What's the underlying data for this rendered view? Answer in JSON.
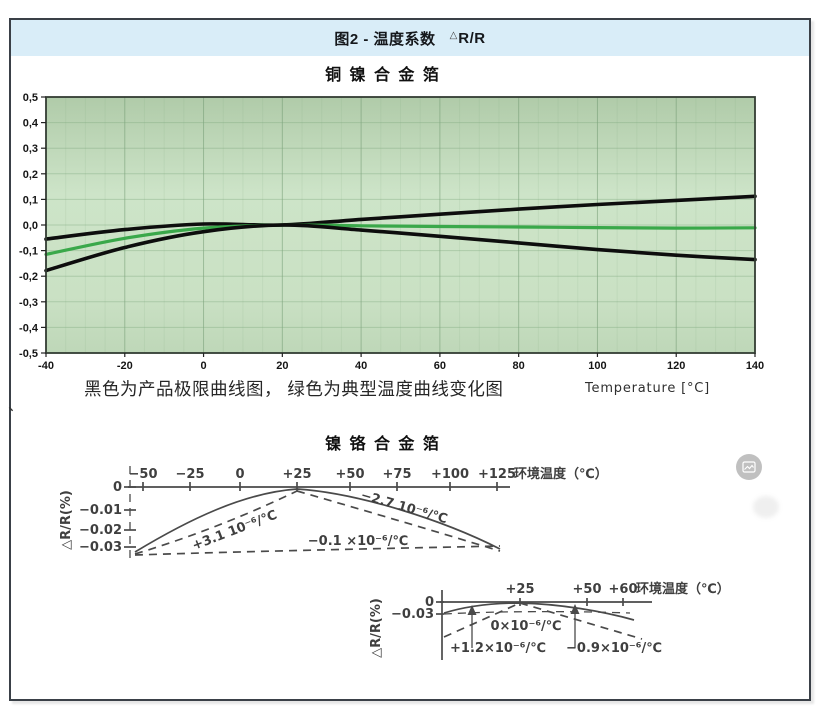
{
  "header": {
    "title": "图2 - 温度系数",
    "delta": "△",
    "ratio": "R/R"
  },
  "colors": {
    "header_bg": "#d9edf8",
    "accent_green": "#3aa84a",
    "curve_black": "#0d0d0d",
    "frame_border": "#3a4047",
    "plot_green_dark": "#b0cba9",
    "plot_green_light": "#cde4c8"
  },
  "copper": {
    "title": "铜 镍 合 金 箔",
    "caption": "黑色为产品极限曲线图， 绿色为典型温度曲线变化图",
    "xlabel": "Temperature [°C]"
  },
  "stray_mark": "、",
  "nicr": {
    "title": "镍 铬 合 金 箔",
    "upper": {
      "ylabel": "△R/R(%)",
      "x_axis_label": "环境温度（℃）",
      "x_ticks": [
        "−50",
        "−25",
        "0",
        "+25",
        "+50",
        "+75",
        "+100",
        "+125"
      ],
      "y_ticks": [
        "0",
        "−0.01",
        "−0.02",
        "−0.03"
      ],
      "label_left_slope": "+3.1  10⁻⁶/℃",
      "label_right_slope": "−2.7  10⁻⁶/℃",
      "label_bottom": "−0.1 ×10⁻⁶/℃"
    },
    "lower": {
      "ylabel": "△R/R(%)",
      "x_axis_label": "环境温度（℃）",
      "x_ticks": [
        "+25",
        "+50",
        "+60"
      ],
      "y_ticks": [
        "0",
        "−0.03"
      ],
      "label_mid": "0×10⁻⁶/℃",
      "label_left": "+1.2×10⁻⁶/℃",
      "label_right": "−0.9×10⁻⁶/℃"
    }
  },
  "chart_data": [
    {
      "type": "line",
      "name": "copper-nickel-foil-tcr",
      "title": "铜 镍 合 金 箔",
      "xlabel": "Temperature [°C]",
      "ylabel": "ΔR/R",
      "xlim": [
        -40,
        140
      ],
      "ylim": [
        -0.5,
        0.5
      ],
      "grid": true,
      "x_ticks": [
        -40,
        -20,
        0,
        20,
        40,
        60,
        80,
        100,
        120,
        140
      ],
      "x_tick_labels": [
        "-40",
        "-20",
        "0",
        "20",
        "40",
        "60",
        "80",
        "100",
        "120",
        "140"
      ],
      "y_ticks": [
        0.5,
        0.4,
        0.3,
        0.2,
        0.1,
        0.0,
        -0.1,
        -0.2,
        -0.3,
        -0.4,
        -0.5
      ],
      "y_tick_labels": [
        "0,5",
        "0,4",
        "0,3",
        "0,2",
        "0,1",
        "0,0",
        "-0,1",
        "-0,2",
        "-0,3",
        "-0,4",
        "-0,5"
      ],
      "series": [
        {
          "name": "upper-limit",
          "color": "#0d0d0d",
          "width": 3.6,
          "x": [
            -40,
            -20,
            0,
            20,
            40,
            60,
            80,
            100,
            120,
            140
          ],
          "y": [
            -0.055,
            -0.018,
            0.004,
            0.0,
            0.022,
            0.042,
            0.062,
            0.08,
            0.096,
            0.112
          ]
        },
        {
          "name": "typical",
          "color": "#3aa84a",
          "width": 3.2,
          "x": [
            -40,
            -20,
            0,
            20,
            40,
            60,
            80,
            100,
            120,
            140
          ],
          "y": [
            -0.115,
            -0.052,
            -0.012,
            0.0,
            -0.003,
            -0.006,
            -0.008,
            -0.01,
            -0.012,
            -0.011
          ]
        },
        {
          "name": "lower-limit",
          "color": "#0d0d0d",
          "width": 3.6,
          "x": [
            -40,
            -20,
            0,
            20,
            40,
            60,
            80,
            100,
            120,
            140
          ],
          "y": [
            -0.178,
            -0.088,
            -0.026,
            0.0,
            -0.02,
            -0.044,
            -0.07,
            -0.096,
            -0.118,
            -0.135
          ]
        }
      ]
    },
    {
      "type": "line",
      "name": "nicr-foil-tcr-wide-range",
      "title": "镍 铬 合 金 箔",
      "xlabel": "环境温度（℃）",
      "ylabel": "ΔR/R(%)",
      "x_ticks": [
        -50,
        -25,
        0,
        25,
        50,
        75,
        100,
        125
      ],
      "y_ticks": [
        0,
        -0.01,
        -0.02,
        -0.03
      ],
      "series": [
        {
          "name": "solid-envelope",
          "style": "solid",
          "x": [
            -62,
            -40,
            -20,
            0,
            25,
            50,
            80,
            100,
            112
          ],
          "y": [
            -0.031,
            -0.021,
            -0.012,
            -0.004,
            0,
            -0.004,
            -0.013,
            -0.022,
            -0.03
          ]
        },
        {
          "name": "chord-left",
          "style": "dashed",
          "tc": "+3.1 ×10⁻⁶/℃",
          "x": [
            -62,
            25
          ],
          "y": [
            -0.032,
            0
          ]
        },
        {
          "name": "chord-right",
          "style": "dashed",
          "tc": "−2.7 ×10⁻⁶/℃",
          "x": [
            25,
            112
          ],
          "y": [
            0,
            -0.031
          ]
        },
        {
          "name": "baseline",
          "style": "dashed",
          "tc": "−0.1 ×10⁻⁶/℃",
          "x": [
            -62,
            112
          ],
          "y": [
            -0.0325,
            -0.0305
          ]
        }
      ]
    },
    {
      "type": "line",
      "name": "nicr-foil-tcr-narrow-range",
      "xlabel": "环境温度（℃）",
      "ylabel": "ΔR/R(%)",
      "x_ticks": [
        25,
        50,
        60
      ],
      "y_ticks": [
        0,
        -0.03
      ],
      "series": [
        {
          "name": "solid-envelope",
          "style": "solid",
          "tc": "0 ×10⁻⁶/℃",
          "x": [
            0,
            10,
            25,
            40,
            55,
            62
          ],
          "y": [
            -0.015,
            -0.006,
            -0.002,
            -0.005,
            -0.015,
            -0.024
          ]
        },
        {
          "name": "chord-left",
          "style": "dashed",
          "tc": "+1.2 ×10⁻⁶/℃",
          "x": [
            0,
            25
          ],
          "y": [
            -0.048,
            -0.002
          ]
        },
        {
          "name": "chord-right",
          "style": "dashed",
          "tc": "−0.9 ×10⁻⁶/℃",
          "x": [
            25,
            65
          ],
          "y": [
            -0.002,
            -0.05
          ]
        },
        {
          "name": "level-line",
          "style": "dashed",
          "x": [
            0,
            62
          ],
          "y": [
            -0.03,
            -0.027
          ]
        }
      ]
    }
  ]
}
